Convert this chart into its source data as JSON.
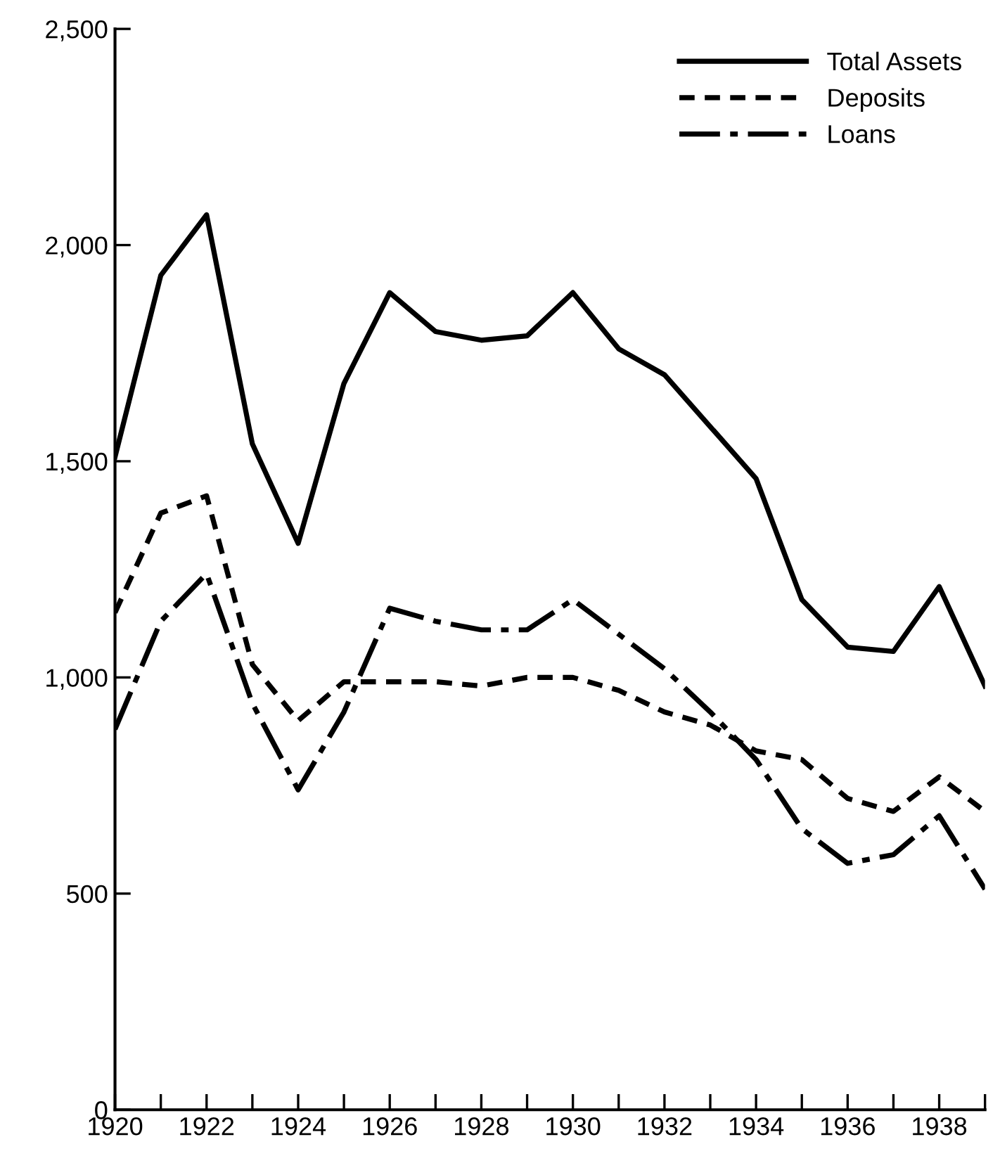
{
  "chart_data": {
    "type": "line",
    "x": [
      1920,
      1921,
      1922,
      1923,
      1924,
      1925,
      1926,
      1927,
      1928,
      1929,
      1930,
      1931,
      1932,
      1933,
      1934,
      1935,
      1936,
      1937,
      1938,
      1939
    ],
    "series": [
      {
        "name": "Total Assets",
        "color": "#000000",
        "line_style": "solid",
        "values": [
          1510,
          1930,
          2070,
          1540,
          1310,
          1680,
          1890,
          1800,
          1780,
          1790,
          1890,
          1760,
          1700,
          1580,
          1460,
          1180,
          1070,
          1060,
          1210,
          980
        ]
      },
      {
        "name": "Deposits",
        "color": "#000000",
        "line_style": "dashed",
        "values": [
          1150,
          1380,
          1420,
          1030,
          900,
          990,
          990,
          990,
          980,
          1000,
          1000,
          970,
          920,
          890,
          830,
          810,
          720,
          690,
          770,
          690
        ]
      },
      {
        "name": "Loans",
        "color": "#000000",
        "line_style": "dashdot",
        "values": [
          880,
          1130,
          1240,
          940,
          740,
          920,
          1160,
          1130,
          1110,
          1110,
          1180,
          1100,
          1020,
          920,
          810,
          650,
          570,
          590,
          680,
          510
        ]
      }
    ],
    "xlim": [
      1920,
      1939
    ],
    "ylim": [
      0,
      2500
    ],
    "xticks": [
      1920,
      {
        "value": 1921,
        "label": null
      },
      1922,
      {
        "value": 1923,
        "label": null
      },
      1924,
      {
        "value": 1925,
        "label": null
      },
      1926,
      {
        "value": 1927,
        "label": null
      },
      1928,
      {
        "value": 1929,
        "label": null
      },
      1930,
      {
        "value": 1931,
        "label": null
      },
      1932,
      {
        "value": 1933,
        "label": null
      },
      1934,
      {
        "value": 1935,
        "label": null
      },
      1936,
      {
        "value": 1937,
        "label": null
      },
      1938,
      {
        "value": 1939,
        "label": null
      }
    ],
    "yticks": [
      {
        "value": 0,
        "label": "0"
      },
      {
        "value": 500,
        "label": "500"
      },
      {
        "value": 1000,
        "label": "1,000"
      },
      {
        "value": 1500,
        "label": "1,500"
      },
      {
        "value": 2000,
        "label": "2,000"
      },
      {
        "value": 2500,
        "label": "2,500"
      }
    ],
    "grid": false,
    "legend": "top right",
    "marker": "none"
  }
}
